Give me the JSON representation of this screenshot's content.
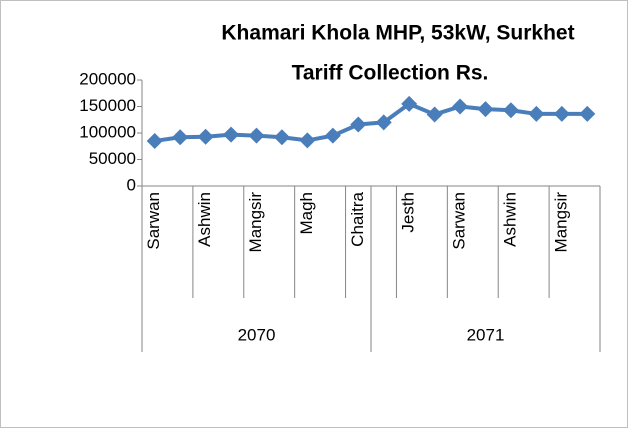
{
  "chart_data": {
    "type": "line",
    "title": "Khamari Khola MHP, 53kW, Surkhet",
    "subtitle": "Tariff Collection Rs.",
    "categories": [
      "Sarwan",
      null,
      "Ashwin",
      null,
      "Mangsir",
      null,
      "Magh",
      null,
      "Chaitra",
      null,
      "Jesth",
      null,
      "Sarwan",
      null,
      "Ashwin",
      null,
      "Mangsir",
      null
    ],
    "groups": [
      {
        "name": "2070",
        "span": 9
      },
      {
        "name": "2071",
        "span": 9
      }
    ],
    "series": [
      {
        "color": "#4a7ebb",
        "values": [
          85000,
          92000,
          93000,
          97000,
          95000,
          92000,
          86000,
          95000,
          116000,
          120000,
          155000,
          135000,
          150000,
          145000,
          143000,
          136000,
          136000,
          136000
        ]
      }
    ],
    "ylim": [
      0,
      200000
    ],
    "yticks": [
      0,
      50000,
      100000,
      150000,
      200000
    ],
    "grid": false
  }
}
